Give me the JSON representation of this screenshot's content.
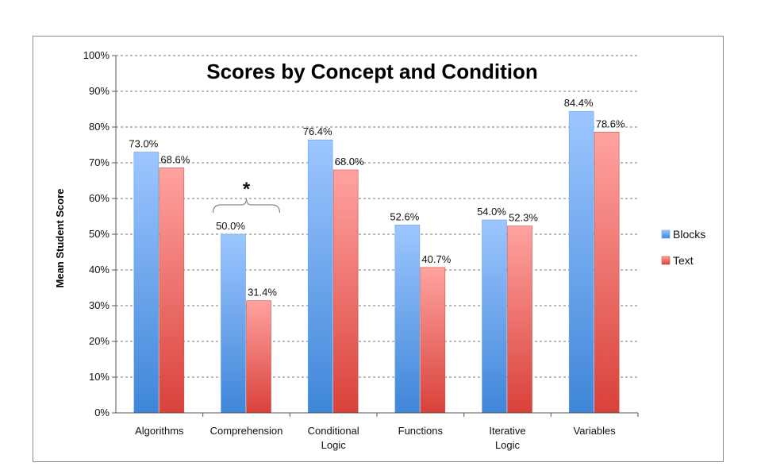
{
  "chart_data": {
    "type": "bar",
    "title": "Scores by Concept and Condition",
    "xlabel": "",
    "ylabel": "Mean Student Score",
    "ylim": [
      0,
      100
    ],
    "yticks": [
      "0%",
      "10%",
      "20%",
      "30%",
      "40%",
      "50%",
      "60%",
      "70%",
      "80%",
      "90%",
      "100%"
    ],
    "categories": [
      [
        "Algorithms"
      ],
      [
        "Comprehension"
      ],
      [
        "Conditional",
        "Logic"
      ],
      [
        "Functions"
      ],
      [
        "Iterative",
        "Logic"
      ],
      [
        "Variables"
      ]
    ],
    "series": [
      {
        "name": "Blocks",
        "values": [
          73.0,
          50.0,
          76.4,
          52.6,
          54.0,
          84.4
        ],
        "labels": [
          "73.0%",
          "50.0%",
          "76.4%",
          "52.6%",
          "54.0%",
          "84.4%"
        ]
      },
      {
        "name": "Text",
        "values": [
          68.6,
          31.4,
          68.0,
          40.7,
          52.3,
          78.6
        ],
        "labels": [
          "68.6%",
          "31.4%",
          "68.0%",
          "40.7%",
          "52.3%",
          "78.6%"
        ]
      }
    ],
    "colors": {
      "Blocks_top": "#9dc6ff",
      "Blocks_bottom": "#3f86d8",
      "Text_top": "#ffa3a0",
      "Text_bottom": "#d9413a"
    },
    "annotation": {
      "text": "*",
      "category_index": 1
    },
    "grid": true,
    "legend_position": "right"
  }
}
